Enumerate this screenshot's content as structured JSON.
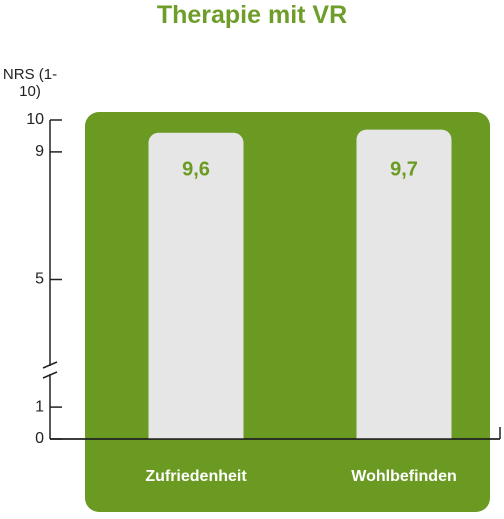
{
  "chart_data": {
    "type": "bar",
    "title": "Therapie mit VR",
    "y_label": "NRS (1-10)",
    "categories": [
      "Zufriedenheit",
      "Wohlbefinden"
    ],
    "values": [
      9.6,
      9.7
    ],
    "value_labels": [
      "9,6",
      "9,7"
    ],
    "color": "#e6e6e6",
    "ylim": [
      0,
      10
    ],
    "yticks": [
      0,
      1,
      5,
      9,
      10
    ]
  }
}
